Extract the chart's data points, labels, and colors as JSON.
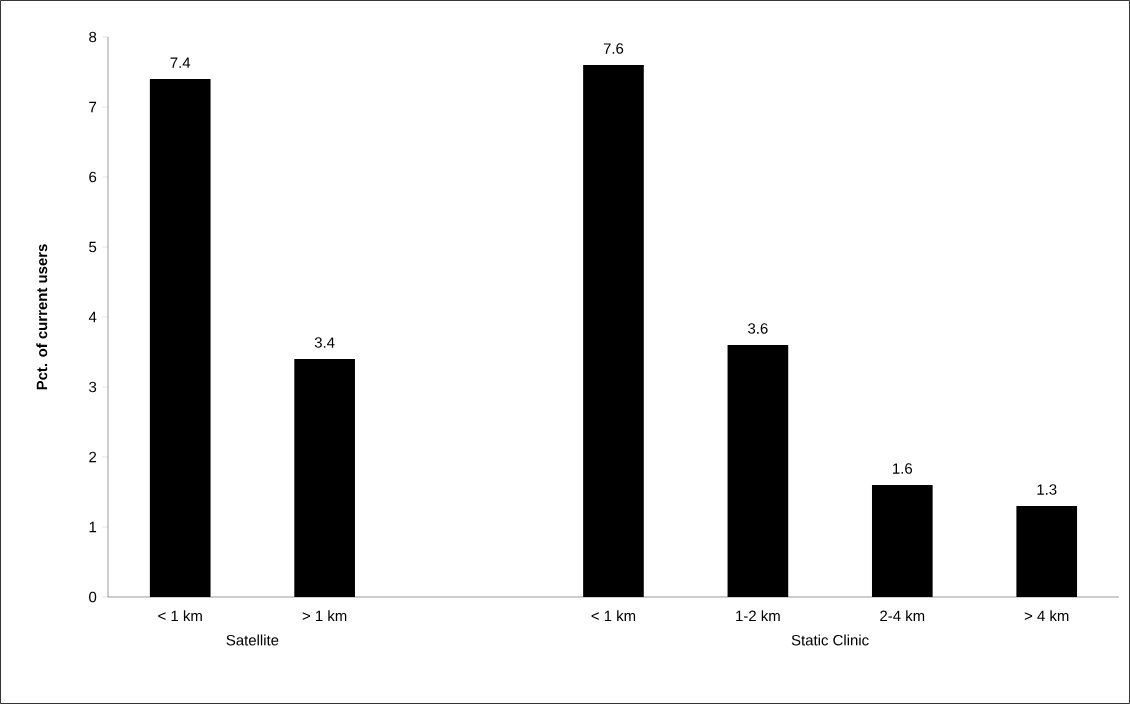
{
  "chart_data": {
    "type": "bar",
    "ylabel": "Pct. of current users",
    "categories": [
      "< 1 km",
      "> 1 km",
      null,
      "< 1 km",
      "1-2 km",
      "2-4 km",
      "> 4 km"
    ],
    "values": [
      7.4,
      3.4,
      null,
      7.6,
      3.6,
      1.6,
      1.3
    ],
    "color": "#000000",
    "ylim": [
      0,
      8
    ],
    "yticks": [
      0,
      1,
      2,
      3,
      4,
      5,
      6,
      7,
      8
    ],
    "data_labels": true,
    "annotations": [
      "Satellite",
      "Static Clinic"
    ]
  }
}
